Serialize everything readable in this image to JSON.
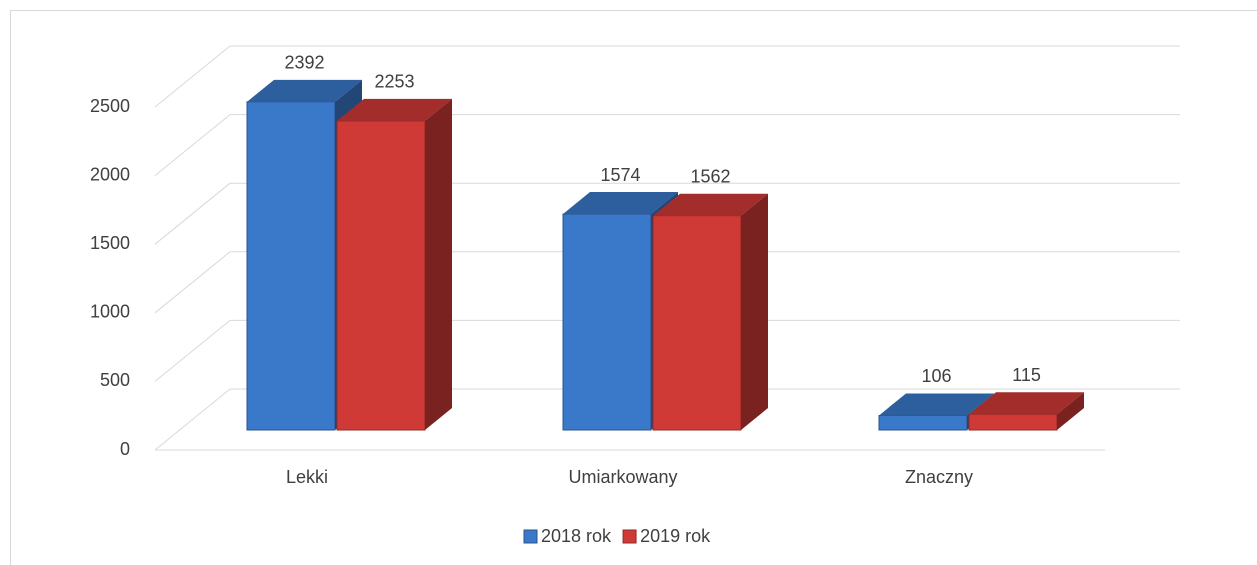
{
  "chart_data": {
    "type": "bar3d",
    "categories": [
      "Lekki",
      "Umiarkowany",
      "Znaczny"
    ],
    "series": [
      {
        "name": "2018 rok",
        "color": "#3a78c9",
        "values": [
          2392,
          1574,
          106
        ]
      },
      {
        "name": "2019 rok",
        "color": "#d03a36",
        "values": [
          2253,
          1562,
          115
        ]
      }
    ],
    "ylim": [
      0,
      2500
    ],
    "yticks": [
      0,
      500,
      1000,
      1500,
      2000,
      2500
    ],
    "grid": true,
    "legend": "bottom"
  }
}
